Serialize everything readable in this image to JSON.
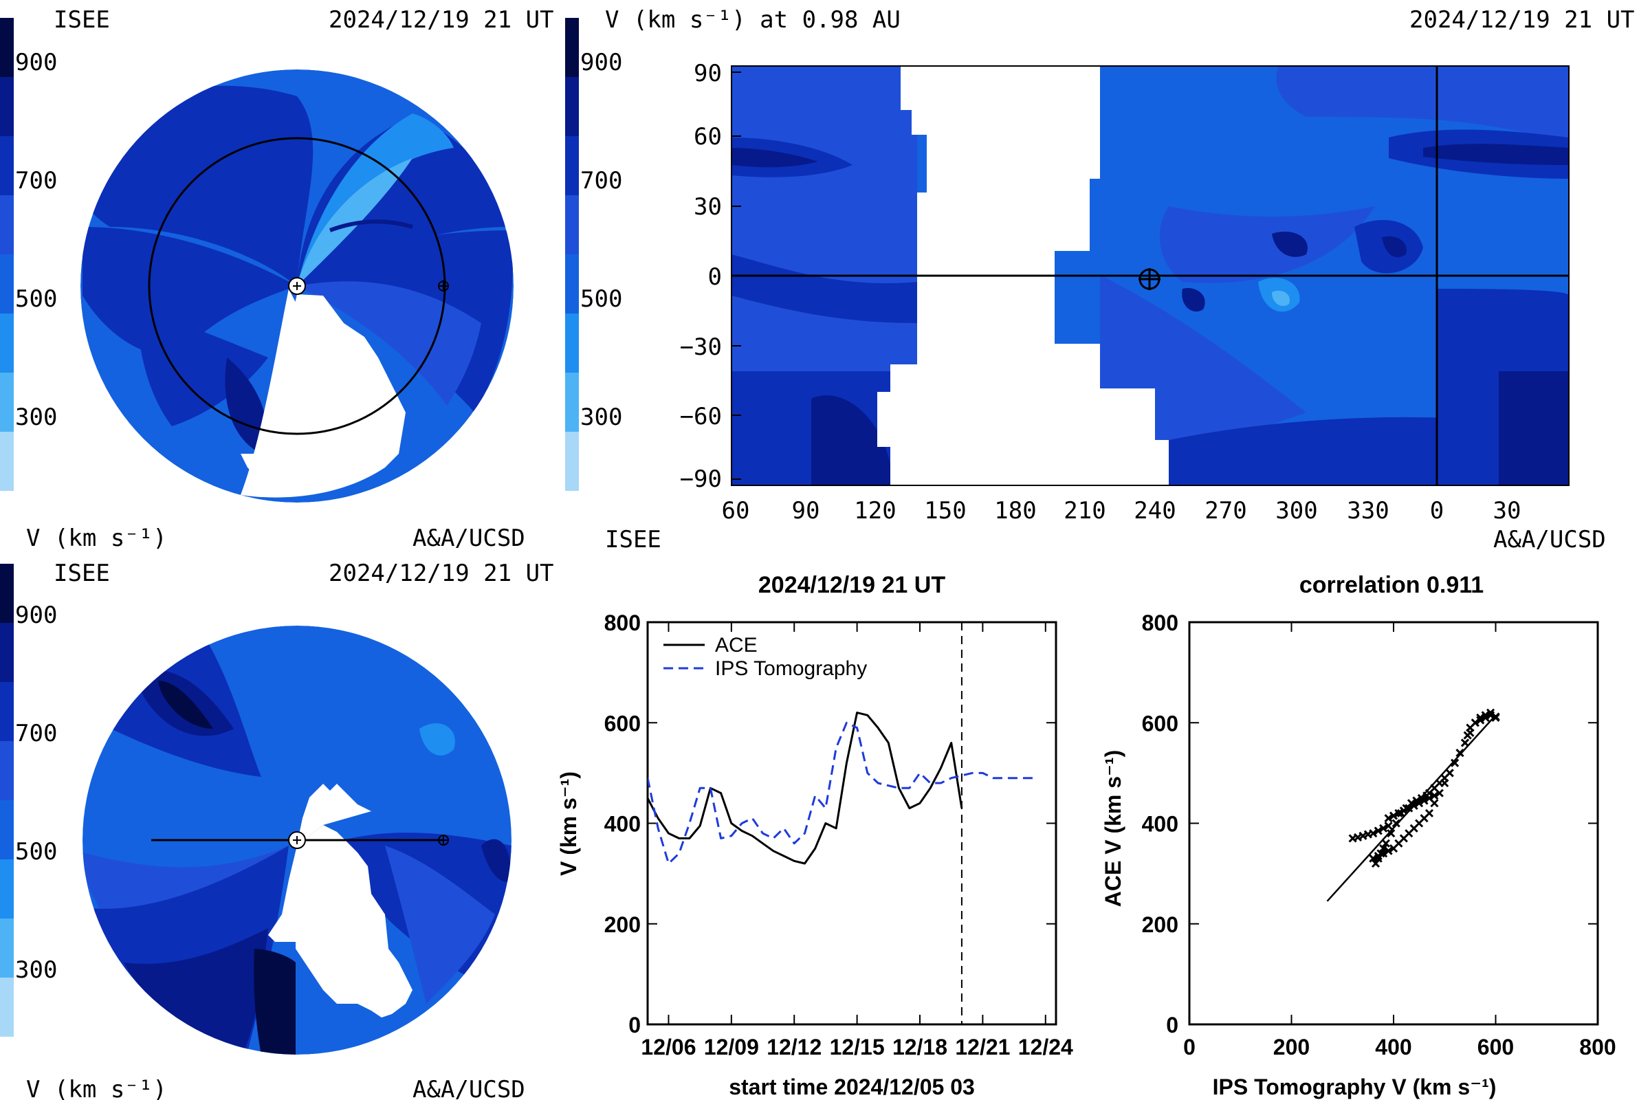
{
  "colors": {
    "scale": [
      "#a8d8f8",
      "#4db3f5",
      "#1e8ef0",
      "#1462e0",
      "#1f4fd8",
      "#0c2fb8",
      "#061a8c",
      "#020a45"
    ],
    "polar_base": "#1b5ee0",
    "ips_line": "#1f3bdb",
    "ace_line": "#000000"
  },
  "top_left": {
    "left_label": "ISEE",
    "timestamp": "2024/12/19 21 UT",
    "colorbar_ticks": [
      "900",
      "700",
      "500",
      "300"
    ],
    "units": "V (km s⁻¹)",
    "credit": "A&A/UCSD"
  },
  "top_right": {
    "title": "V (km s⁻¹) at 0.98 AU",
    "timestamp": "2024/12/19 21 UT",
    "colorbar_ticks": [
      "900",
      "700",
      "500",
      "300"
    ],
    "left_label": "ISEE",
    "credit": "A&A/UCSD",
    "y_ticks": [
      "90",
      "60",
      "30",
      "0",
      "−30",
      "−60",
      "−90"
    ],
    "x_ticks": [
      "60",
      "90",
      "120",
      "150",
      "180",
      "210",
      "240",
      "270",
      "300",
      "330",
      "0",
      "30"
    ]
  },
  "bottom_left": {
    "left_label": "ISEE",
    "timestamp": "2024/12/19 21 UT",
    "colorbar_ticks": [
      "900",
      "700",
      "500",
      "300"
    ],
    "units": "V (km s⁻¹)",
    "credit": "A&A/UCSD"
  },
  "chart_data": [
    {
      "type": "line",
      "title": "2024/12/19 21 UT",
      "xlabel": "start time 2024/12/05 03",
      "ylabel": "V (km s⁻¹)",
      "x_ticks": [
        "12/06",
        "12/09",
        "12/12",
        "12/15",
        "12/18",
        "12/21",
        "12/24"
      ],
      "y_ticks": [
        "800",
        "600",
        "400",
        "200",
        "0"
      ],
      "ylim": [
        0,
        800
      ],
      "xlim": [
        0,
        19.5
      ],
      "legend": "top-left",
      "vline_x": 15.0,
      "series": [
        {
          "name": "ACE",
          "style": "solid",
          "x": [
            0.0,
            0.5,
            1.0,
            1.5,
            2.0,
            2.5,
            3.0,
            3.5,
            4.0,
            4.5,
            5.0,
            5.5,
            6.0,
            6.5,
            7.0,
            7.5,
            8.0,
            8.5,
            9.0,
            9.5,
            10.0,
            10.5,
            11.0,
            11.5,
            12.0,
            12.5,
            13.0,
            13.5,
            14.0,
            14.5,
            15.0
          ],
          "values": [
            450,
            410,
            380,
            370,
            370,
            395,
            470,
            460,
            400,
            385,
            375,
            360,
            345,
            335,
            325,
            320,
            350,
            400,
            390,
            520,
            620,
            615,
            590,
            560,
            470,
            430,
            440,
            470,
            510,
            560,
            430
          ]
        },
        {
          "name": "IPS Tomography",
          "style": "dashed",
          "x": [
            0.0,
            0.5,
            1.0,
            1.5,
            2.0,
            2.5,
            3.0,
            3.5,
            4.0,
            4.5,
            5.0,
            5.5,
            6.0,
            6.5,
            7.0,
            7.5,
            8.0,
            8.5,
            9.0,
            9.5,
            10.0,
            10.5,
            11.0,
            11.5,
            12.0,
            12.5,
            13.0,
            13.5,
            14.0,
            14.5,
            15.0,
            15.5,
            16.0,
            16.5,
            17.0,
            17.5,
            18.0,
            18.5
          ],
          "values": [
            490,
            390,
            320,
            340,
            400,
            470,
            470,
            370,
            375,
            400,
            410,
            380,
            370,
            390,
            360,
            380,
            455,
            430,
            550,
            600,
            590,
            500,
            480,
            475,
            470,
            470,
            500,
            480,
            480,
            490,
            495,
            500,
            500,
            490,
            490,
            490,
            490,
            490
          ]
        }
      ]
    },
    {
      "type": "scatter",
      "title": "correlation 0.911",
      "xlabel": "IPS Tomography V (km s⁻¹)",
      "ylabel": "ACE V (km s⁻¹)",
      "x_ticks": [
        "0",
        "200",
        "400",
        "600",
        "800"
      ],
      "y_ticks": [
        "800",
        "600",
        "400",
        "200",
        "0"
      ],
      "xlim": [
        0,
        800
      ],
      "ylim": [
        0,
        800
      ],
      "fit_line": {
        "x": [
          270,
          600
        ],
        "y": [
          245,
          615
        ]
      },
      "points": {
        "x": [
          320,
          330,
          340,
          350,
          360,
          370,
          380,
          390,
          380,
          370,
          365,
          375,
          385,
          395,
          405,
          415,
          425,
          435,
          445,
          455,
          465,
          470,
          480,
          490,
          500,
          510,
          520,
          530,
          540,
          545,
          550,
          560,
          570,
          580,
          590,
          600,
          390,
          400,
          410,
          420,
          430,
          440,
          450,
          460,
          470,
          480,
          360,
          370,
          380,
          390,
          400,
          410,
          420,
          430,
          440,
          450,
          460,
          470,
          480,
          490,
          500,
          510,
          520,
          530,
          540,
          550,
          560,
          570,
          580,
          590,
          600
        ],
        "y": [
          370,
          372,
          375,
          378,
          380,
          385,
          390,
          395,
          350,
          330,
          320,
          340,
          360,
          380,
          400,
          420,
          430,
          440,
          445,
          450,
          455,
          460,
          470,
          480,
          490,
          500,
          520,
          540,
          560,
          575,
          590,
          600,
          610,
          615,
          620,
          610,
          410,
          415,
          420,
          425,
          430,
          435,
          440,
          445,
          450,
          455,
          330,
          335,
          340,
          345,
          350,
          360,
          370,
          380,
          390,
          400,
          410,
          420,
          440,
          460,
          480,
          500,
          520,
          540,
          560,
          580,
          600,
          605,
          610,
          615,
          612
        ]
      }
    }
  ]
}
